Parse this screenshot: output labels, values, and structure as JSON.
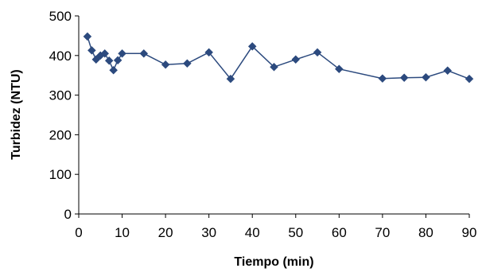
{
  "chart_data": {
    "type": "scatter",
    "title": "",
    "xlabel": "Tiempo (min)",
    "ylabel": "Turbidez (NTU)",
    "xlim": [
      0,
      90
    ],
    "ylim": [
      0,
      500
    ],
    "x_ticks": [
      "0",
      "10",
      "20",
      "30",
      "40",
      "50",
      "60",
      "70",
      "80",
      "90"
    ],
    "y_ticks": [
      "0",
      "100",
      "200",
      "300",
      "400",
      "500"
    ],
    "grid": false,
    "marker": "diamond",
    "lines": true,
    "colors": {
      "series": "#2c4a7e"
    },
    "series": [
      {
        "x": [
          2,
          3,
          4,
          5,
          6,
          7,
          8,
          9,
          10,
          15,
          20,
          25,
          30,
          35,
          40,
          45,
          50,
          55,
          60,
          70,
          75,
          80,
          85,
          90
        ],
        "y": [
          448,
          413,
          390,
          400,
          405,
          387,
          363,
          388,
          405,
          405,
          377,
          380,
          408,
          341,
          423,
          371,
          390,
          408,
          366,
          342,
          344,
          345,
          362,
          341
        ]
      }
    ]
  }
}
